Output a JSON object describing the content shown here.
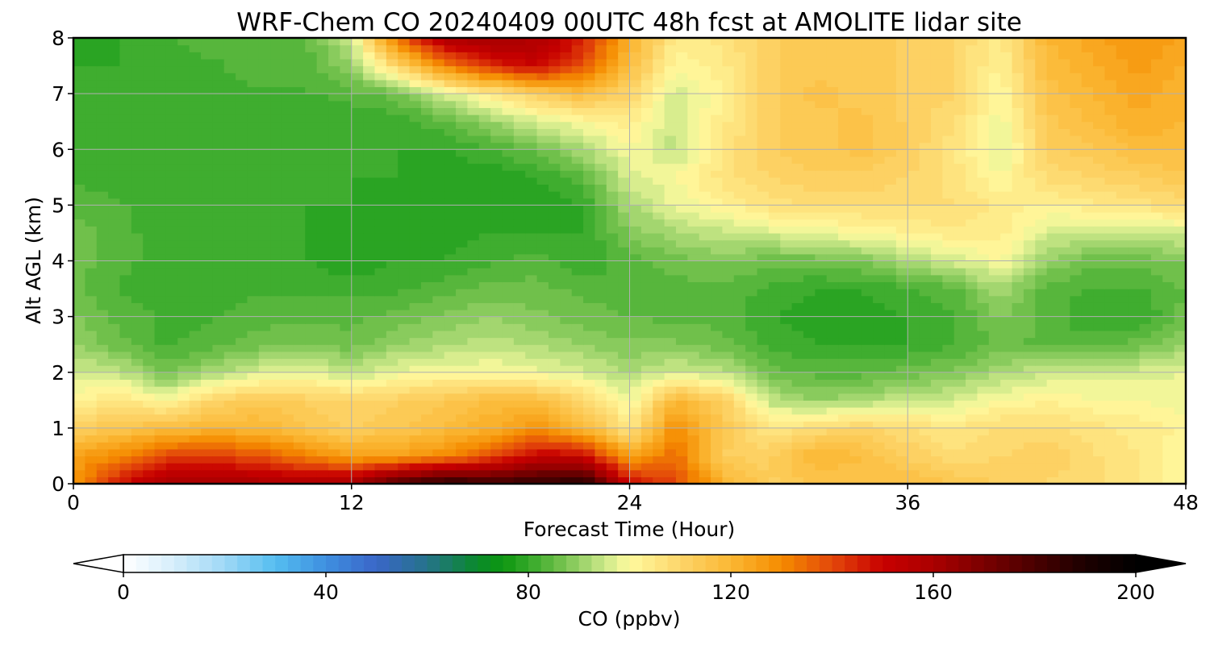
{
  "chart_data": {
    "type": "heatmap",
    "title": "WRF-Chem CO  20240409 00UTC 48h fcst at AMOLITE lidar site",
    "xlabel": "Forecast Time (Hour)",
    "ylabel": "Alt AGL (km)",
    "xlim": [
      0,
      48
    ],
    "ylim": [
      0,
      8
    ],
    "xticks": [
      0,
      12,
      24,
      36,
      48
    ],
    "yticks": [
      0,
      1,
      2,
      3,
      4,
      5,
      6,
      7,
      8
    ],
    "grid": true,
    "x": [
      0,
      2,
      4,
      6,
      8,
      10,
      12,
      14,
      16,
      18,
      20,
      22,
      24,
      26,
      28,
      30,
      32,
      34,
      36,
      38,
      40,
      42,
      44,
      46,
      48
    ],
    "y": [
      0,
      0.5,
      1,
      1.5,
      2,
      2.5,
      3,
      3.5,
      4,
      4.5,
      5,
      5.5,
      6,
      6.5,
      7,
      7.5,
      8
    ],
    "z": [
      [
        128,
        148,
        160,
        162,
        160,
        158,
        162,
        180,
        188,
        185,
        185,
        190,
        150,
        140,
        122,
        112,
        115,
        115,
        118,
        115,
        112,
        110,
        108,
        105,
        100
      ],
      [
        125,
        130,
        140,
        142,
        138,
        132,
        125,
        125,
        130,
        138,
        152,
        150,
        125,
        135,
        112,
        112,
        120,
        118,
        112,
        108,
        110,
        112,
        108,
        105,
        100
      ],
      [
        112,
        115,
        118,
        120,
        120,
        115,
        112,
        115,
        118,
        122,
        128,
        120,
        105,
        130,
        115,
        105,
        108,
        110,
        108,
        105,
        108,
        108,
        106,
        104,
        102
      ],
      [
        102,
        106,
        100,
        110,
        114,
        112,
        110,
        112,
        114,
        118,
        118,
        110,
        98,
        120,
        112,
        94,
        90,
        92,
        95,
        96,
        100,
        102,
        100,
        100,
        98
      ],
      [
        96,
        94,
        86,
        92,
        96,
        98,
        94,
        98,
        100,
        100,
        98,
        96,
        92,
        96,
        94,
        86,
        84,
        84,
        86,
        88,
        92,
        95,
        96,
        96,
        98
      ],
      [
        90,
        86,
        82,
        84,
        86,
        88,
        86,
        90,
        92,
        94,
        92,
        90,
        88,
        88,
        86,
        82,
        80,
        80,
        80,
        82,
        86,
        84,
        84,
        86,
        90
      ],
      [
        88,
        84,
        82,
        82,
        84,
        84,
        84,
        86,
        88,
        90,
        88,
        86,
        85,
        84,
        84,
        80,
        78,
        78,
        80,
        82,
        88,
        84,
        80,
        80,
        86
      ],
      [
        86,
        82,
        80,
        80,
        82,
        82,
        82,
        82,
        84,
        86,
        86,
        84,
        84,
        84,
        84,
        82,
        80,
        80,
        82,
        84,
        92,
        84,
        82,
        82,
        85
      ],
      [
        86,
        84,
        80,
        80,
        80,
        80,
        78,
        80,
        80,
        82,
        84,
        80,
        84,
        86,
        88,
        86,
        86,
        88,
        92,
        96,
        100,
        90,
        86,
        86,
        88
      ],
      [
        86,
        84,
        80,
        80,
        80,
        80,
        78,
        78,
        78,
        80,
        80,
        80,
        88,
        92,
        94,
        96,
        98,
        100,
        102,
        104,
        104,
        96,
        94,
        94,
        96
      ],
      [
        84,
        83,
        80,
        80,
        80,
        80,
        80,
        78,
        78,
        78,
        78,
        80,
        92,
        98,
        102,
        106,
        108,
        108,
        108,
        108,
        104,
        102,
        104,
        106,
        108
      ],
      [
        82,
        81,
        80,
        81,
        80,
        80,
        80,
        80,
        78,
        78,
        80,
        84,
        96,
        100,
        106,
        110,
        112,
        112,
        110,
        106,
        100,
        108,
        110,
        112,
        114
      ],
      [
        80,
        80,
        80,
        82,
        81,
        80,
        80,
        80,
        80,
        82,
        86,
        92,
        100,
        94,
        106,
        112,
        114,
        116,
        112,
        106,
        96,
        112,
        114,
        118,
        118
      ],
      [
        80,
        80,
        80,
        81,
        80,
        80,
        80,
        81,
        84,
        90,
        96,
        100,
        104,
        94,
        104,
        112,
        114,
        116,
        112,
        108,
        98,
        114,
        118,
        122,
        120
      ],
      [
        80,
        80,
        80,
        80,
        82,
        82,
        84,
        86,
        96,
        104,
        112,
        118,
        110,
        96,
        102,
        112,
        116,
        114,
        112,
        110,
        100,
        116,
        120,
        124,
        120
      ],
      [
        80,
        80,
        81,
        82,
        84,
        84,
        90,
        110,
        130,
        144,
        150,
        138,
        118,
        100,
        104,
        112,
        114,
        114,
        112,
        110,
        102,
        118,
        122,
        126,
        122
      ],
      [
        79,
        80,
        82,
        84,
        85,
        84,
        95,
        135,
        158,
        162,
        158,
        146,
        122,
        104,
        106,
        112,
        114,
        114,
        112,
        110,
        104,
        120,
        124,
        128,
        124
      ]
    ],
    "colorbar": {
      "label": "CO  (ppbv)",
      "min": 0,
      "max": 200,
      "ticks": [
        0,
        40,
        80,
        120,
        160,
        200
      ],
      "extend": "both",
      "colormap": [
        [
          0,
          "#ffffff"
        ],
        [
          10,
          "#d6eefb"
        ],
        [
          20,
          "#9fd8f6"
        ],
        [
          30,
          "#55bef0"
        ],
        [
          40,
          "#3e8fe0"
        ],
        [
          50,
          "#3a66c8"
        ],
        [
          60,
          "#25738a"
        ],
        [
          70,
          "#0a8a2a"
        ],
        [
          75,
          "#0d9710"
        ],
        [
          80,
          "#33a829"
        ],
        [
          85,
          "#63bb42"
        ],
        [
          90,
          "#96d066"
        ],
        [
          95,
          "#cbe888"
        ],
        [
          100,
          "#fffa9e"
        ],
        [
          110,
          "#fdd56a"
        ],
        [
          120,
          "#fbb733"
        ],
        [
          130,
          "#f58b00"
        ],
        [
          140,
          "#e3480a"
        ],
        [
          150,
          "#c80000"
        ],
        [
          160,
          "#aa0000"
        ],
        [
          170,
          "#7a0000"
        ],
        [
          180,
          "#4a0000"
        ],
        [
          190,
          "#1c0000"
        ],
        [
          200,
          "#000000"
        ]
      ]
    }
  }
}
